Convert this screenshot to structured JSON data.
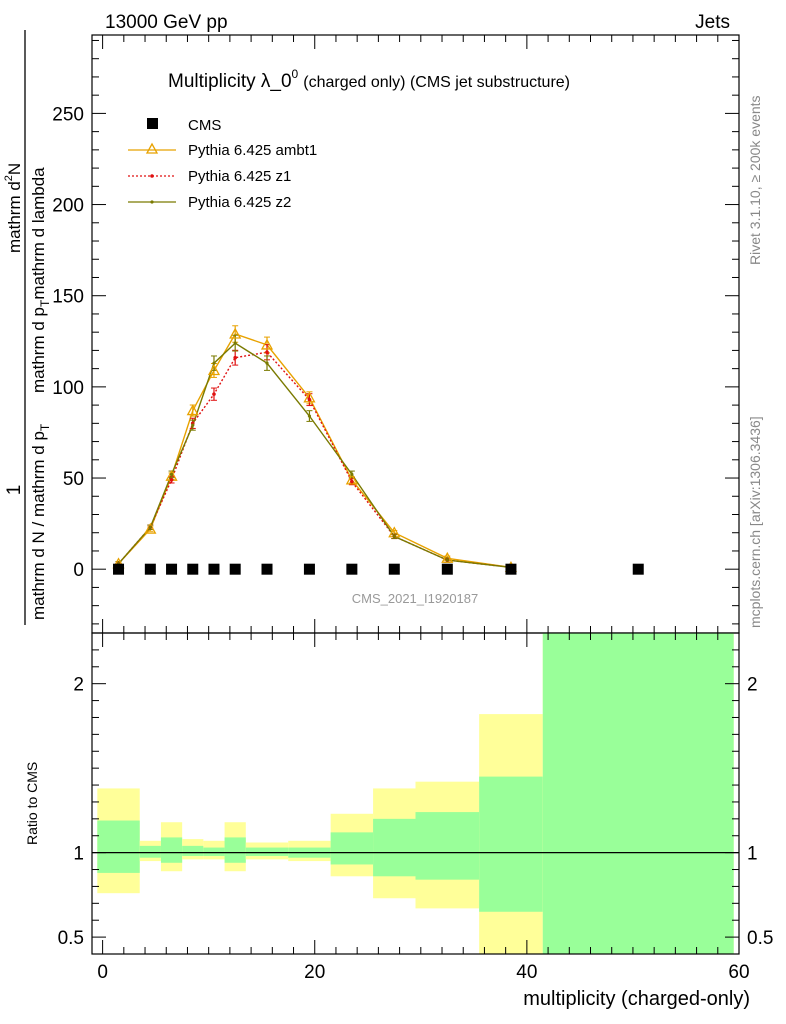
{
  "header": {
    "left": "13000 GeV pp",
    "right": "Jets"
  },
  "side_labels": {
    "rivet": "Rivet 3.1.10, ≥ 200k events",
    "mcplots": "mcplots.cern.ch [arXiv:1306.3436]"
  },
  "chart_data": [
    {
      "type": "line",
      "title": "Multiplicity λ_0",
      "title_sup": "0",
      "title_note": "(charged only) (CMS jet substructure)",
      "watermark": "CMS_2021_I1920187",
      "ylabel": {
        "numer": "1",
        "denom": "mathrm d N / mathrm d p",
        "denom_sub": "T",
        "denom_tail": "mathrm d N / mathrm d p",
        "top_numer": "mathrm d",
        "top_sup": "2",
        "top_tail": "N",
        "top_denom": "mathrm d p",
        "top_denom_sub": "T",
        "top_denom_tail": "mathrm d lambda"
      },
      "xlim": [
        -1,
        60
      ],
      "ylim": [
        -35,
        293
      ],
      "yticks": [
        0,
        50,
        100,
        150,
        200,
        250
      ],
      "legend_position": "top-left",
      "x": [
        1.5,
        4.5,
        6.5,
        8.5,
        10.5,
        12.5,
        15.5,
        19.5,
        23.5,
        27.5,
        32.5,
        38.5,
        50.5
      ],
      "series": [
        {
          "name": "CMS",
          "style": "square",
          "color": "#000000",
          "values": [
            0,
            0,
            0,
            0,
            0,
            0,
            0,
            0,
            0,
            0,
            0,
            0,
            0
          ]
        },
        {
          "name": "Pythia 6.425 ambt1",
          "style": "triangle",
          "color": "#e8a200",
          "values": [
            3,
            22,
            51,
            87,
            109,
            129,
            123,
            94,
            49,
            20,
            6,
            1,
            null
          ]
        },
        {
          "name": "Pythia 6.425 z1",
          "style": "dotted",
          "color": "#e01010",
          "values": [
            3,
            23,
            49,
            80,
            96,
            116,
            119,
            93,
            48,
            18,
            5,
            1,
            null
          ]
        },
        {
          "name": "Pythia 6.425 z2",
          "style": "line",
          "color": "#7a7a00",
          "values": [
            3,
            23,
            52,
            79,
            113,
            124,
            113,
            84,
            52,
            18,
            5,
            1,
            null
          ]
        }
      ]
    },
    {
      "type": "area",
      "ylabel": "Ratio to CMS",
      "xlabel": "multiplicity (charged-only)",
      "xlim": [
        -1,
        60
      ],
      "ylim": [
        0.4,
        2.3
      ],
      "yticks": [
        0.5,
        1,
        2
      ],
      "xticks": [
        0,
        20,
        40,
        60
      ],
      "bands": [
        {
          "x0": -0.5,
          "x1": 3.5,
          "yellow": [
            0.76,
            1.38
          ],
          "green": [
            0.88,
            1.19
          ]
        },
        {
          "x0": 3.5,
          "x1": 5.5,
          "yellow": [
            0.95,
            1.07
          ],
          "green": [
            0.97,
            1.04
          ]
        },
        {
          "x0": 5.5,
          "x1": 7.5,
          "yellow": [
            0.89,
            1.18
          ],
          "green": [
            0.94,
            1.09
          ]
        },
        {
          "x0": 7.5,
          "x1": 9.5,
          "yellow": [
            0.96,
            1.08
          ],
          "green": [
            0.98,
            1.04
          ]
        },
        {
          "x0": 9.5,
          "x1": 11.5,
          "yellow": [
            0.96,
            1.07
          ],
          "green": [
            0.98,
            1.03
          ]
        },
        {
          "x0": 11.5,
          "x1": 13.5,
          "yellow": [
            0.89,
            1.18
          ],
          "green": [
            0.94,
            1.09
          ]
        },
        {
          "x0": 13.5,
          "x1": 17.5,
          "yellow": [
            0.96,
            1.06
          ],
          "green": [
            0.98,
            1.03
          ]
        },
        {
          "x0": 17.5,
          "x1": 21.5,
          "yellow": [
            0.95,
            1.07
          ],
          "green": [
            0.97,
            1.03
          ]
        },
        {
          "x0": 21.5,
          "x1": 25.5,
          "yellow": [
            0.86,
            1.23
          ],
          "green": [
            0.93,
            1.12
          ]
        },
        {
          "x0": 25.5,
          "x1": 29.5,
          "yellow": [
            0.73,
            1.38
          ],
          "green": [
            0.86,
            1.2
          ]
        },
        {
          "x0": 29.5,
          "x1": 35.5,
          "yellow": [
            0.67,
            1.42
          ],
          "green": [
            0.84,
            1.24
          ]
        },
        {
          "x0": 35.5,
          "x1": 41.5,
          "yellow": [
            0.3,
            1.82
          ],
          "green": [
            0.65,
            1.45
          ]
        },
        {
          "x0": 41.5,
          "x1": 59.5,
          "yellow": [
            0.3,
            2.4
          ],
          "green": [
            0.3,
            2.4
          ]
        }
      ]
    }
  ]
}
